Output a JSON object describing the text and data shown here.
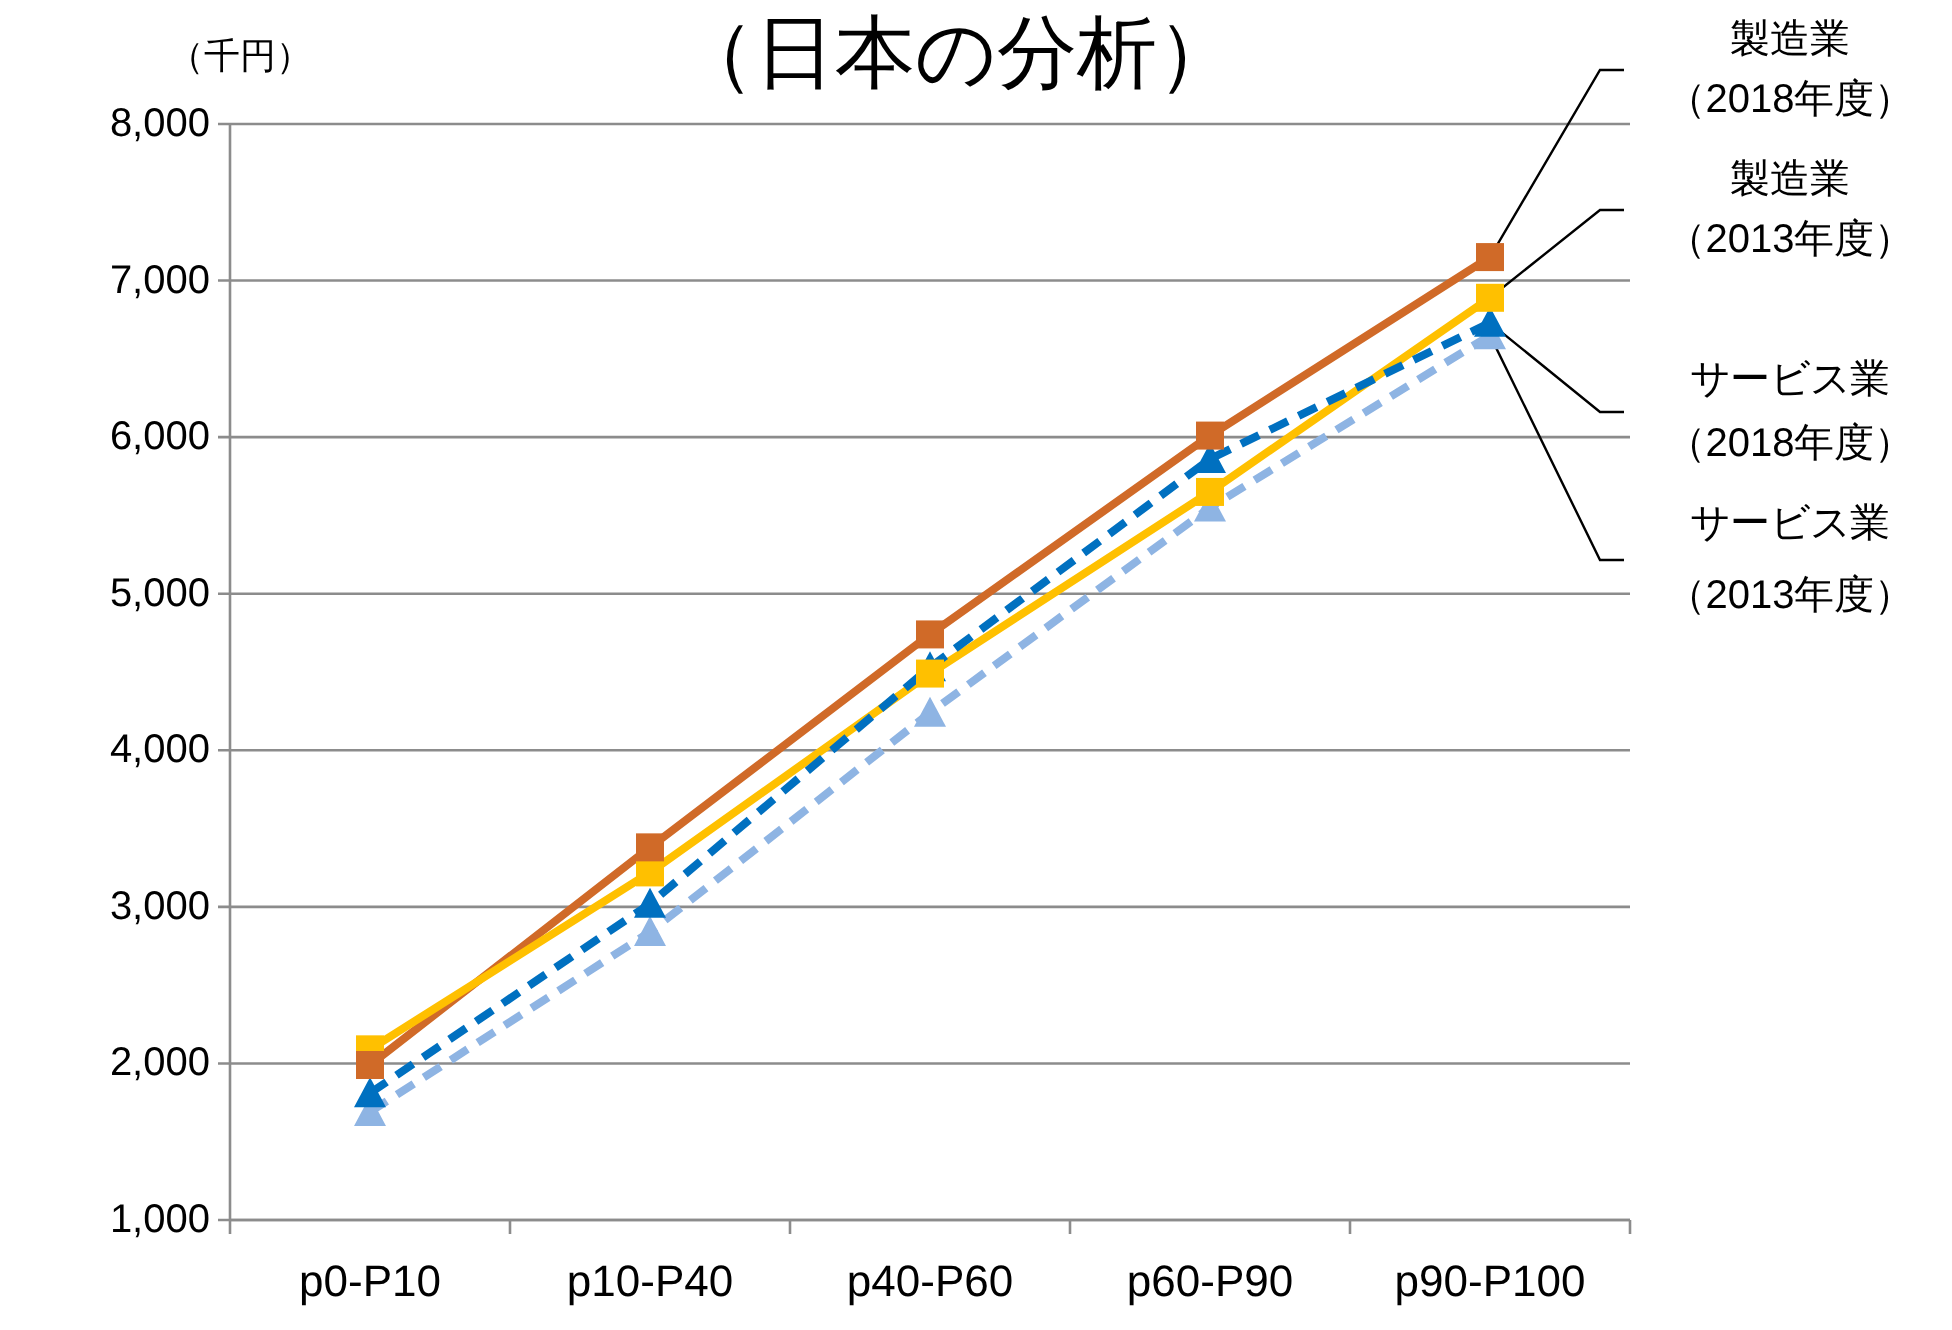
{
  "chart_data": {
    "type": "line",
    "title": "（日本の分析）",
    "ylabel": "（千円）",
    "categories": [
      "p0-P10",
      "p10-P40",
      "p40-P60",
      "p60-P90",
      "p90-P100"
    ],
    "ylim": [
      1000,
      8000
    ],
    "yticks": [
      {
        "value": 1000,
        "label": "1,000"
      },
      {
        "value": 2000,
        "label": "2,000"
      },
      {
        "value": 3000,
        "label": "3,000"
      },
      {
        "value": 4000,
        "label": "4,000"
      },
      {
        "value": 5000,
        "label": "5,000"
      },
      {
        "value": 6000,
        "label": "6,000"
      },
      {
        "value": 7000,
        "label": "7,000"
      },
      {
        "value": 8000,
        "label": "8,000"
      }
    ],
    "grid": "y",
    "series": [
      {
        "name": "製造業（2018年度）",
        "color": "#d06a28",
        "marker": "square",
        "line_style": "solid",
        "values": [
          1990,
          3380,
          4740,
          6010,
          7150
        ]
      },
      {
        "name": "製造業（2013年度）",
        "color": "#ffc000",
        "marker": "square",
        "line_style": "solid",
        "values": [
          2090,
          3220,
          4490,
          5650,
          6890
        ]
      },
      {
        "name": "サービス業（2018年度）",
        "color": "#0070c0",
        "marker": "triangle",
        "line_style": "dashed",
        "values": [
          1810,
          3020,
          4530,
          5860,
          6730
        ]
      },
      {
        "name": "サービス業（2013年度）",
        "color": "#8eb4e3",
        "marker": "triangle",
        "line_style": "dashed",
        "values": [
          1690,
          2840,
          4240,
          5550,
          6650
        ]
      }
    ]
  }
}
